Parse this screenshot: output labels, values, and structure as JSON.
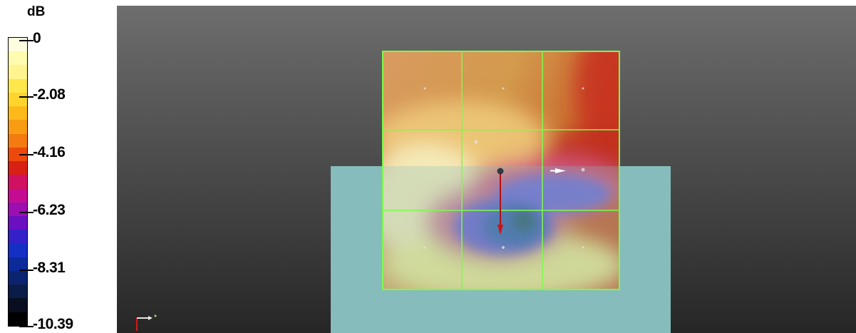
{
  "legend": {
    "unit": "dB",
    "ticks": [
      "0",
      "-2.08",
      "-4.16",
      "-6.23",
      "-8.31",
      "-10.39"
    ],
    "colors": [
      "#fffde0",
      "#fffbb0",
      "#fff490",
      "#fde74a",
      "#fdd52c",
      "#fdb91a",
      "#f89c14",
      "#f37b10",
      "#ec4a0c",
      "#d82014",
      "#d01060",
      "#c40c92",
      "#9c0eb0",
      "#6a10c0",
      "#3420c8",
      "#1430c4",
      "#0c2a9a",
      "#0c2470",
      "#0a1c48",
      "#080e20",
      "#000000"
    ]
  },
  "viewport": {
    "plate_color": "#86bcbc",
    "grid_color": "#7dfb4a"
  },
  "axis_triad": [
    "x-axis-icon",
    "y-axis-icon"
  ]
}
